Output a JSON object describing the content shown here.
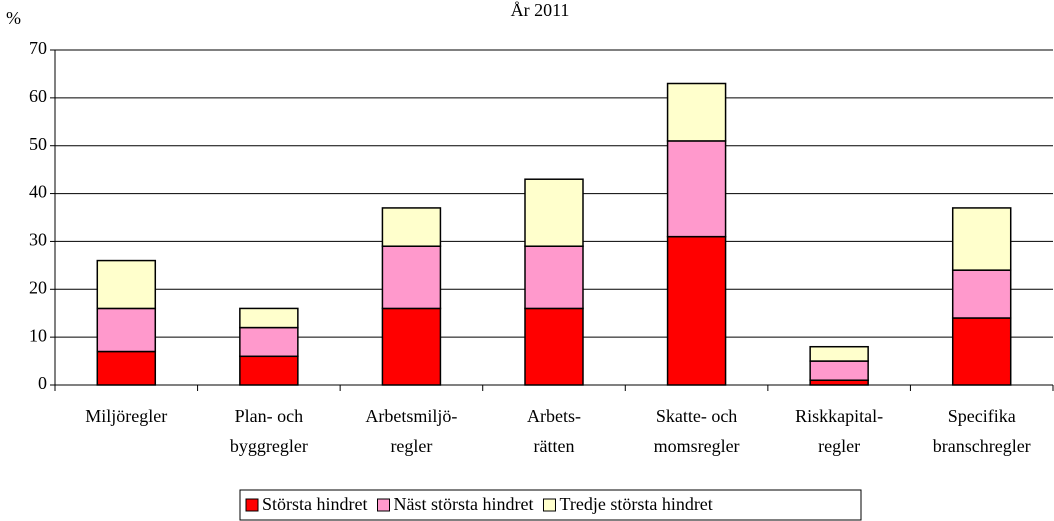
{
  "chart_data": {
    "type": "stacked_bar",
    "title": "År 2011",
    "y_label": "%",
    "categories": [
      [
        "Miljöregler"
      ],
      [
        "Plan- och",
        "byggregler"
      ],
      [
        "Arbetsmiljö-",
        "regler"
      ],
      [
        "Arbets-",
        "rätten"
      ],
      [
        "Skatte- och",
        "momsregler"
      ],
      [
        "Riskkapital-",
        "regler"
      ],
      [
        "Specifika",
        "branschregler"
      ]
    ],
    "series": [
      {
        "name": "Största hindret",
        "color": "#ff0000",
        "values": [
          7,
          6,
          16,
          16,
          31,
          1,
          14
        ]
      },
      {
        "name": "Näst största hindret",
        "color": "#ff99cc",
        "values": [
          9,
          6,
          13,
          13,
          20,
          4,
          10
        ]
      },
      {
        "name": "Tredje största hindret",
        "color": "#ffffcc",
        "values": [
          10,
          4,
          8,
          14,
          12,
          3,
          13
        ]
      }
    ],
    "ylim": [
      0,
      70
    ],
    "yticks": [
      0,
      10,
      20,
      30,
      40,
      50,
      60,
      70
    ],
    "grid": true,
    "legend": "bottom"
  }
}
